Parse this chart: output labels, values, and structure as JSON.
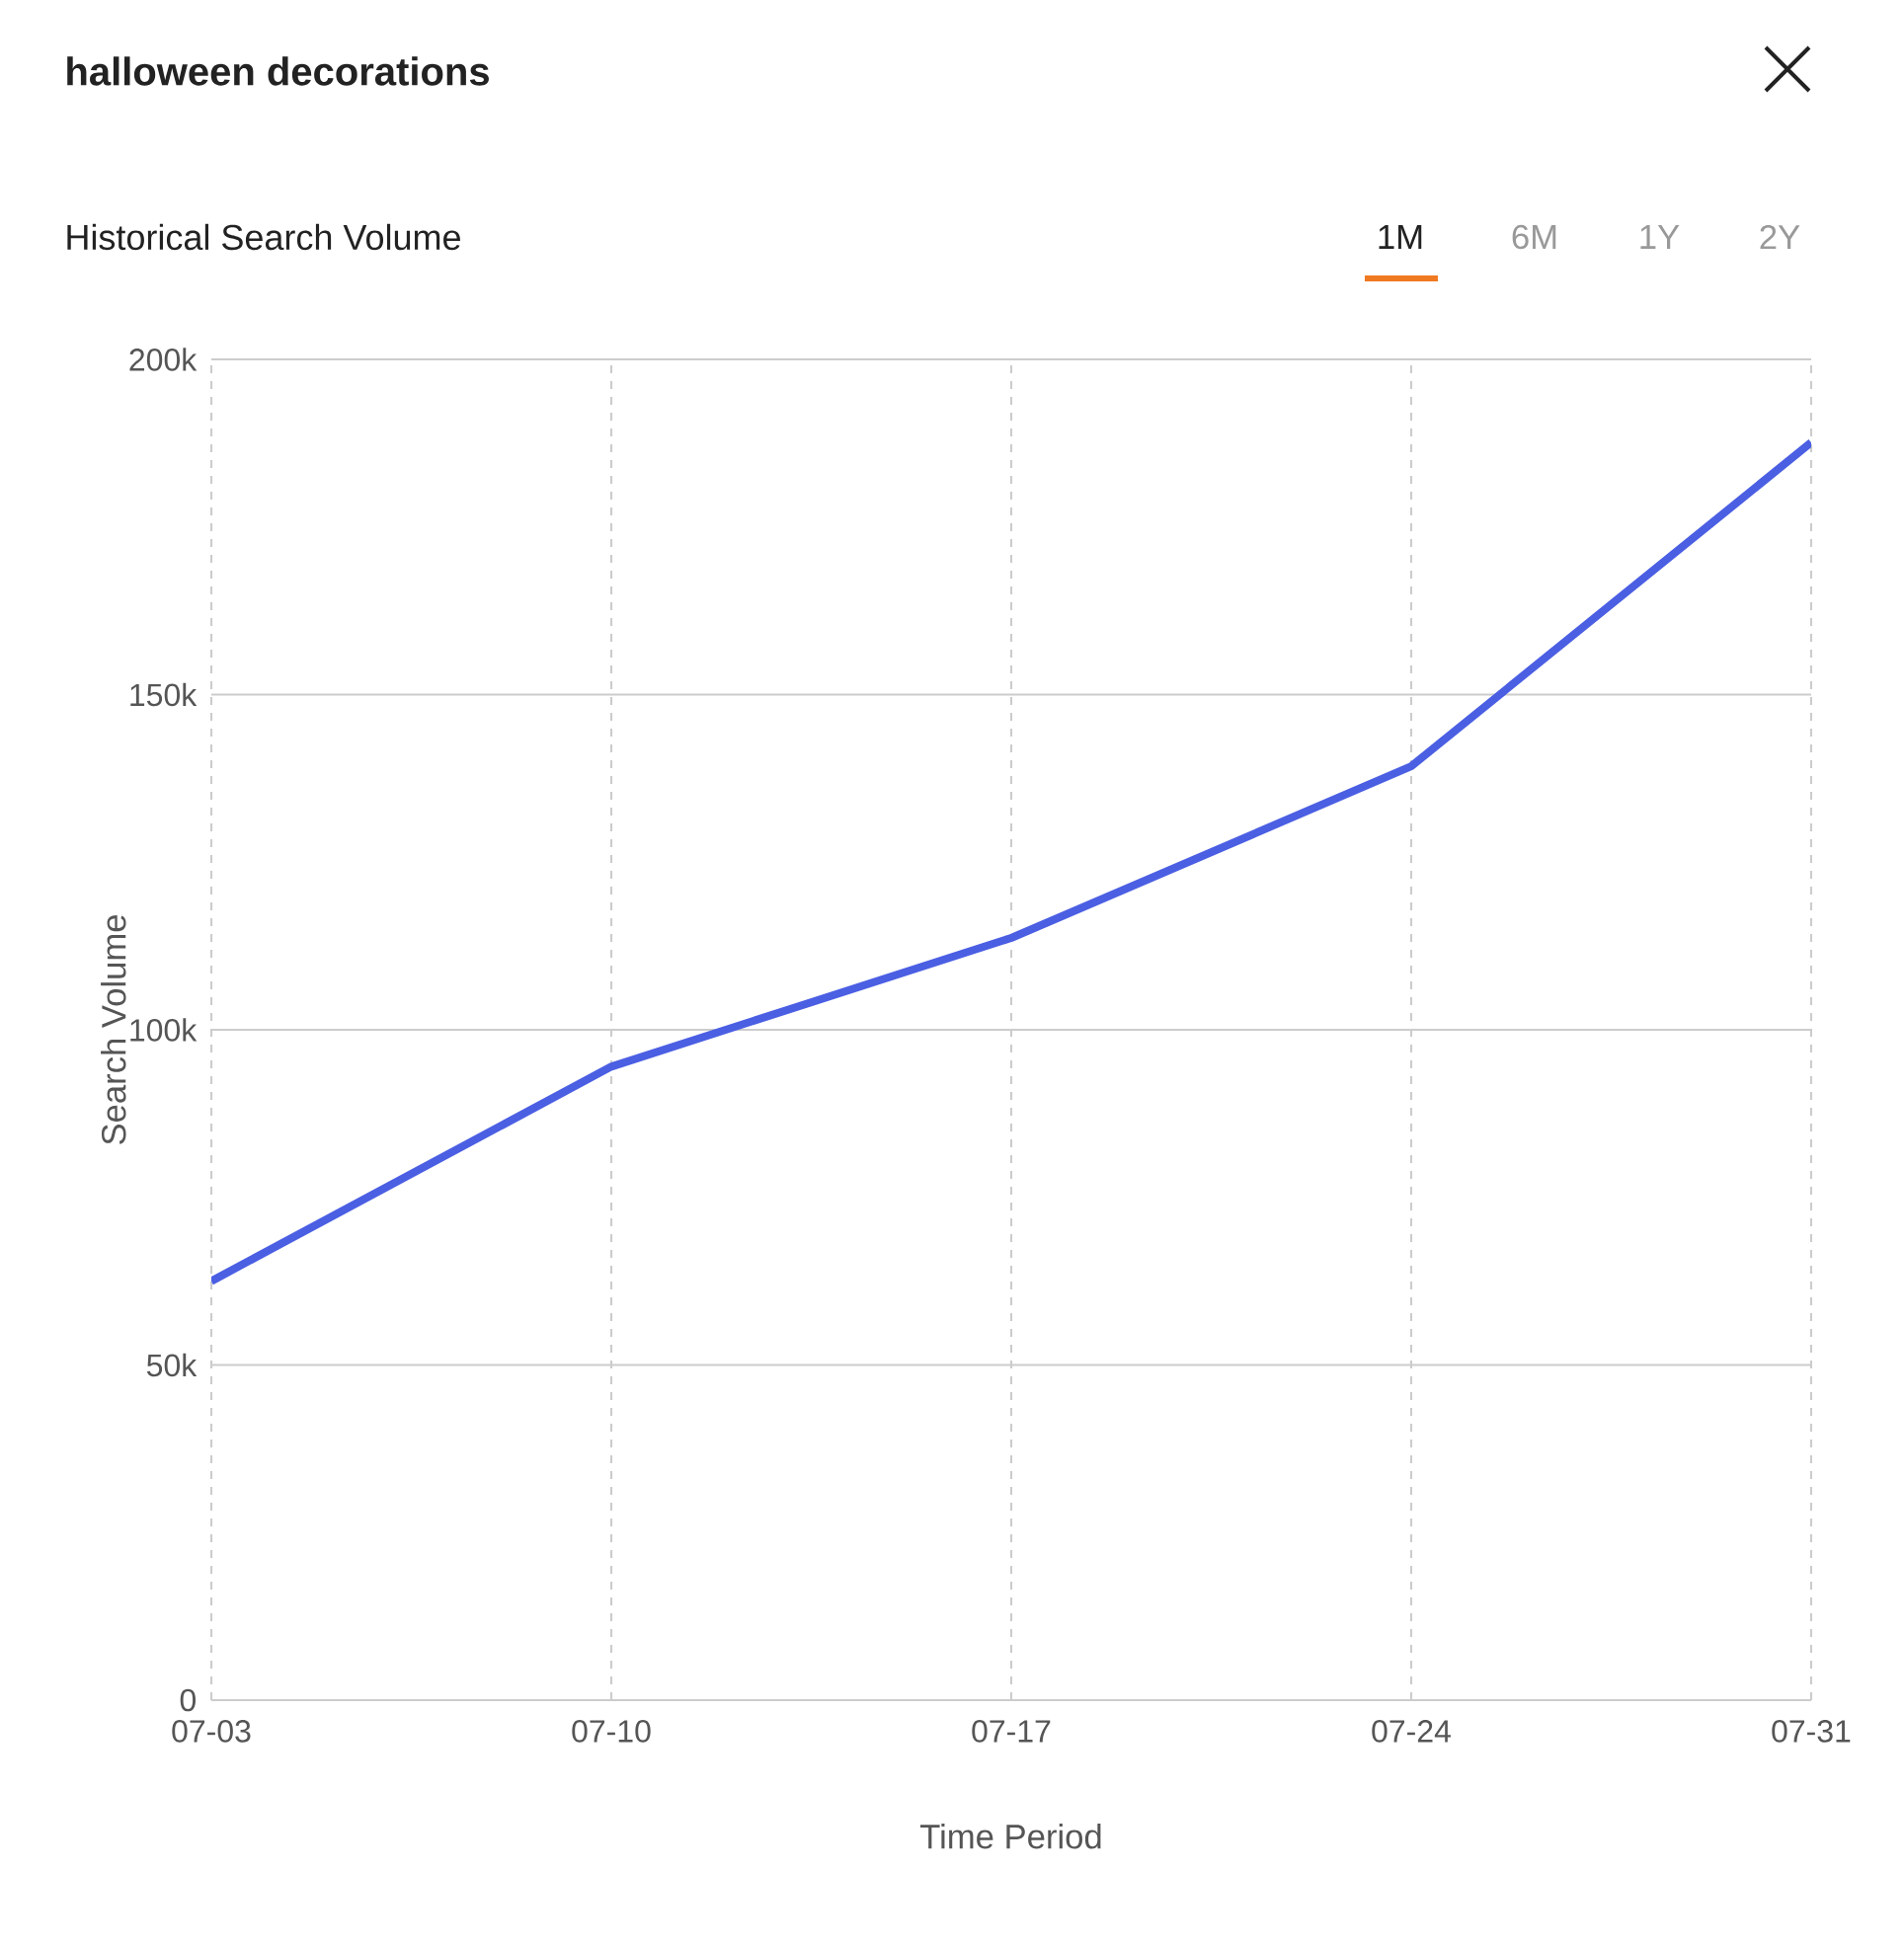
{
  "chart_data": {
    "type": "line",
    "title": "halloween decorations",
    "subtitle": "Historical Search Volume",
    "annotations": [
      "1M",
      "6M",
      "1Y",
      "2Y"
    ],
    "xlabel": "Time Period",
    "ylabel": "Search Volume",
    "categories": [
      "07-03",
      "07-10",
      "07-17",
      "07-24",
      "07-31"
    ],
    "series": [
      {
        "color": "#4b5fe3",
        "values": [
          62500,
          94500,
          113700,
          139300,
          187600
        ]
      }
    ],
    "ylim": [
      0,
      200000
    ],
    "yticks": [
      {
        "value": 0,
        "label": "0"
      },
      {
        "value": 50000,
        "label": "50k"
      },
      {
        "value": 100000,
        "label": "100k"
      },
      {
        "value": 150000,
        "label": "150k"
      },
      {
        "value": 200000,
        "label": "200k"
      }
    ],
    "grid": true,
    "marker": "none",
    "line_style": "solid"
  }
}
